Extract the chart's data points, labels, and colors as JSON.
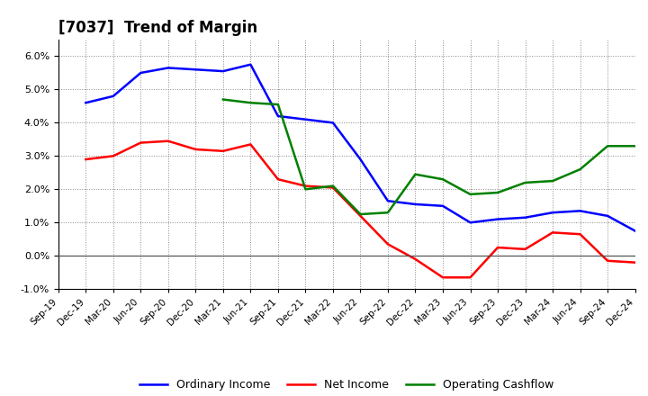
{
  "title": "[7037]  Trend of Margin",
  "x_labels": [
    "Sep-19",
    "Dec-19",
    "Mar-20",
    "Jun-20",
    "Sep-20",
    "Dec-20",
    "Mar-21",
    "Jun-21",
    "Sep-21",
    "Dec-21",
    "Mar-22",
    "Jun-22",
    "Sep-22",
    "Dec-22",
    "Mar-23",
    "Jun-23",
    "Sep-23",
    "Dec-23",
    "Mar-24",
    "Jun-24",
    "Sep-24",
    "Dec-24"
  ],
  "ordinary_income_x": [
    1,
    2,
    3,
    4,
    5,
    6,
    7,
    8,
    9,
    10,
    11,
    12,
    13,
    14,
    15,
    16,
    17,
    18,
    19,
    20,
    21
  ],
  "ordinary_income_y": [
    4.6,
    4.8,
    5.5,
    5.65,
    5.6,
    5.55,
    5.75,
    4.2,
    4.1,
    4.0,
    2.9,
    1.65,
    1.55,
    1.5,
    1.0,
    1.1,
    1.15,
    1.3,
    1.35,
    1.2,
    0.75
  ],
  "net_income_x": [
    1,
    2,
    3,
    4,
    5,
    6,
    7,
    8,
    9,
    10,
    11,
    12,
    13,
    14,
    15,
    16,
    17,
    18,
    19,
    20,
    21
  ],
  "net_income_y": [
    2.9,
    3.0,
    3.4,
    3.45,
    3.2,
    3.15,
    3.35,
    2.3,
    2.1,
    2.05,
    1.2,
    0.35,
    -0.1,
    -0.65,
    -0.65,
    0.25,
    0.2,
    0.7,
    0.65,
    -0.15,
    -0.2
  ],
  "ocf_x": [
    6,
    7,
    8,
    9,
    10,
    11,
    12,
    13,
    14,
    15,
    16,
    17,
    18,
    19,
    20,
    21
  ],
  "ocf_y": [
    4.7,
    4.6,
    4.55,
    2.0,
    2.1,
    1.25,
    1.3,
    2.45,
    2.3,
    1.85,
    1.9,
    2.2,
    2.25,
    2.6,
    3.3,
    3.3
  ],
  "ylim": [
    -1.0,
    6.5
  ],
  "yticks": [
    -1.0,
    0.0,
    1.0,
    2.0,
    3.0,
    4.0,
    5.0,
    6.0
  ],
  "colors": {
    "ordinary_income": "#0000FF",
    "net_income": "#FF0000",
    "operating_cashflow": "#008000"
  },
  "background_color": "#FFFFFF"
}
